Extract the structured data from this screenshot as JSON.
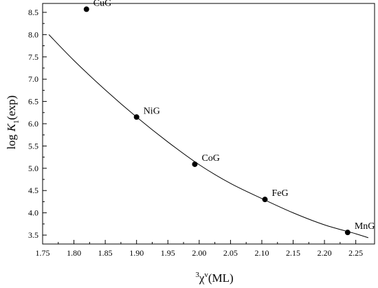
{
  "chart_data": {
    "type": "scatter",
    "xlabel": {
      "sup": "3",
      "main": "χ",
      "sup2": "v",
      "rest": "(ML)"
    },
    "ylabel": {
      "pre": "log ",
      "italic": "K",
      "sub": "1",
      "rest": "(exp)"
    },
    "xlim": [
      1.75,
      2.28
    ],
    "ylim": [
      3.3,
      8.7
    ],
    "xticks": [
      "1.75",
      "1.80",
      "1.85",
      "1.90",
      "1.95",
      "2.00",
      "2.05",
      "2.10",
      "2.15",
      "2.20",
      "2.25"
    ],
    "yticks": [
      "3.5",
      "4.0",
      "4.5",
      "5.0",
      "5.5",
      "6.0",
      "6.5",
      "7.0",
      "7.5",
      "8.0",
      "8.5"
    ],
    "grid": false,
    "points": [
      {
        "label": "CuG",
        "x": 1.82,
        "y": 8.57
      },
      {
        "label": "NiG",
        "x": 1.9,
        "y": 6.15
      },
      {
        "label": "CoG",
        "x": 1.993,
        "y": 5.09
      },
      {
        "label": "FeG",
        "x": 2.105,
        "y": 4.3
      },
      {
        "label": "MnG",
        "x": 2.237,
        "y": 3.56
      }
    ],
    "fit_curve": {
      "x": [
        1.76,
        1.8,
        1.85,
        1.9,
        1.95,
        2.0,
        2.05,
        2.1,
        2.15,
        2.2,
        2.25,
        2.27
      ],
      "y": [
        8.0,
        7.42,
        6.76,
        6.15,
        5.59,
        5.08,
        4.66,
        4.32,
        4.0,
        3.73,
        3.53,
        3.44
      ]
    }
  }
}
